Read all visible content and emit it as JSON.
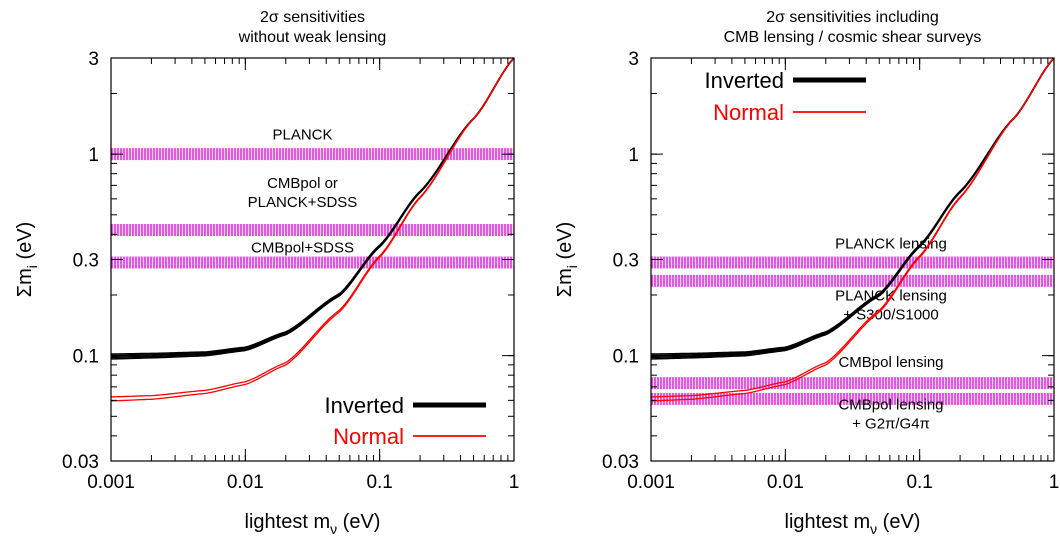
{
  "chart_data": [
    {
      "type": "line",
      "title": [
        "2σ  sensitivities",
        "without weak lensing"
      ],
      "xlabel": "lightest m",
      "xlabel_sub": "ν",
      "xlabel_unit": " (eV)",
      "ylabel": "Σm",
      "ylabel_sub": "i",
      "ylabel_unit": " (eV)",
      "xscale": "log",
      "yscale": "log",
      "xlim": [
        0.001,
        1
      ],
      "ylim": [
        0.03,
        3
      ],
      "xticks": [
        0.001,
        0.01,
        0.1,
        1
      ],
      "xtick_labels": [
        "0.001",
        "0.01",
        "0.1",
        "1"
      ],
      "yticks": [
        0.03,
        0.1,
        0.3,
        1,
        3
      ],
      "ytick_labels": [
        "0.03",
        "0.1",
        "0.3",
        "1",
        "3"
      ],
      "legend_position": "bottom-right",
      "series": [
        {
          "name": "Inverted",
          "color": "#000000",
          "hierarchy": "inverted",
          "x": [
            0.001,
            0.002,
            0.005,
            0.01,
            0.02,
            0.05,
            0.1,
            0.2,
            0.5,
            1
          ],
          "y": [
            0.099,
            0.1,
            0.102,
            0.108,
            0.129,
            0.2,
            0.35,
            0.65,
            1.5,
            3.0
          ]
        },
        {
          "name": "Normal",
          "color": "#ff0000",
          "hierarchy": "normal",
          "x": [
            0.001,
            0.002,
            0.005,
            0.01,
            0.02,
            0.05,
            0.1,
            0.2,
            0.5,
            1
          ],
          "y": [
            0.061,
            0.062,
            0.066,
            0.073,
            0.091,
            0.166,
            0.31,
            0.61,
            1.5,
            3.0
          ]
        }
      ],
      "bands": [
        {
          "label": [
            "PLANCK"
          ],
          "y": 1.0,
          "label_y": 1.25
        },
        {
          "label": [
            "CMBpol or",
            "PLANCK+SDSS"
          ],
          "y": 0.42,
          "label_y": 0.58
        },
        {
          "label": [
            "CMBpol+SDSS"
          ],
          "y": 0.29,
          "label_y": 0.345
        }
      ]
    },
    {
      "type": "line",
      "title": [
        "2σ  sensitivities including",
        "CMB lensing / cosmic shear surveys"
      ],
      "xlabel": "lightest m",
      "xlabel_sub": "ν",
      "xlabel_unit": " (eV)",
      "ylabel": "Σm",
      "ylabel_sub": "i",
      "ylabel_unit": " (eV)",
      "xscale": "log",
      "yscale": "log",
      "xlim": [
        0.001,
        1
      ],
      "ylim": [
        0.03,
        3
      ],
      "xticks": [
        0.001,
        0.01,
        0.1,
        1
      ],
      "xtick_labels": [
        "0.001",
        "0.01",
        "0.1",
        "1"
      ],
      "yticks": [
        0.03,
        0.1,
        0.3,
        1,
        3
      ],
      "ytick_labels": [
        "0.03",
        "0.1",
        "0.3",
        "1",
        "3"
      ],
      "legend_position": "top-left",
      "series": [
        {
          "name": "Inverted",
          "color": "#000000",
          "hierarchy": "inverted",
          "x": [
            0.001,
            0.002,
            0.005,
            0.01,
            0.02,
            0.05,
            0.1,
            0.2,
            0.5,
            1
          ],
          "y": [
            0.099,
            0.1,
            0.102,
            0.108,
            0.129,
            0.2,
            0.35,
            0.65,
            1.5,
            3.0
          ]
        },
        {
          "name": "Normal",
          "color": "#ff0000",
          "hierarchy": "normal",
          "x": [
            0.001,
            0.002,
            0.005,
            0.01,
            0.02,
            0.05,
            0.1,
            0.2,
            0.5,
            1
          ],
          "y": [
            0.061,
            0.062,
            0.066,
            0.073,
            0.091,
            0.166,
            0.31,
            0.61,
            1.5,
            3.0
          ]
        }
      ],
      "bands": [
        {
          "label": [
            "PLANCK lensing"
          ],
          "y": 0.29,
          "label_y": 0.36
        },
        {
          "label": [
            "PLANCK lensing",
            "+ S300/S1000"
          ],
          "y": 0.235,
          "label_y": 0.16
        },
        {
          "label": [
            "CMBpol lensing"
          ],
          "y": 0.073,
          "label_y": 0.093
        },
        {
          "label": [
            "CMBpol lensing",
            "+ G2π/G4π"
          ],
          "y": 0.061,
          "label_y": 0.046
        }
      ]
    }
  ],
  "colors": {
    "band": "#dd22dd",
    "inverted": "#000000",
    "normal": "#ff0000"
  }
}
